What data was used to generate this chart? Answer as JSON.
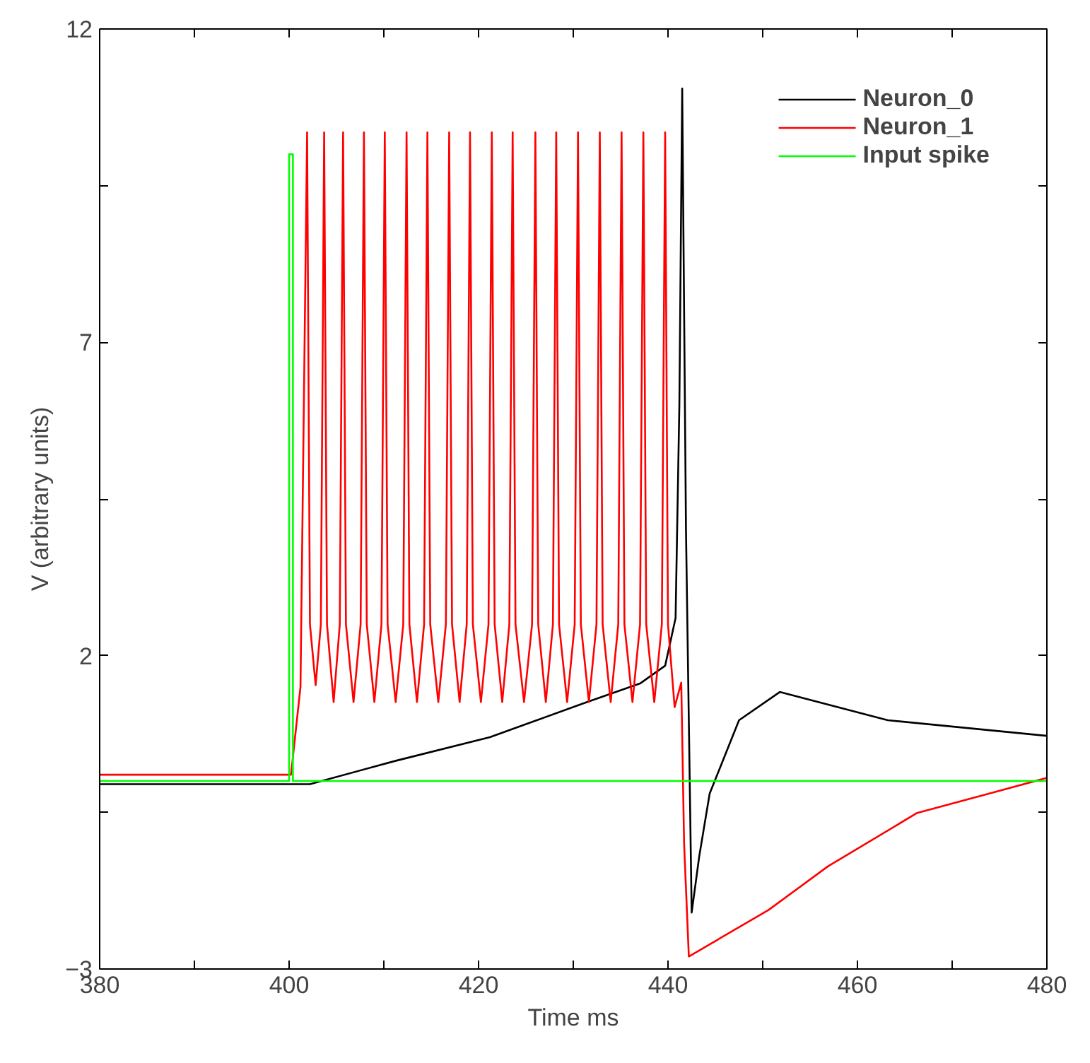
{
  "chart_data": {
    "type": "line",
    "xlabel": "Time ms",
    "ylabel": "V (arbitrary units)",
    "xlim": [
      380,
      480
    ],
    "ylim": [
      -3,
      12
    ],
    "xticks": [
      380,
      {
        "value": 390,
        "label": null
      },
      400,
      {
        "value": 410,
        "label": null
      },
      420,
      {
        "value": 430,
        "label": null
      },
      440,
      {
        "value": 450,
        "label": null
      },
      460,
      {
        "value": 470,
        "label": null
      },
      480
    ],
    "yticks": [
      {
        "value": -3,
        "label": "−3"
      },
      {
        "value": -0.5,
        "label": null
      },
      2,
      {
        "value": 4.5,
        "label": null
      },
      7,
      {
        "value": 9.5,
        "label": null
      },
      12
    ],
    "grid": false,
    "legend": "top right",
    "marker": "none",
    "line_style": "solid",
    "series": [
      {
        "name": "Neuron_0",
        "color": "#000000",
        "x": [
          380,
          402.2,
          411.2,
          421.2,
          431.1,
          437.1,
          439.7,
          440.8,
          441.2,
          441.5,
          441.9,
          442.5,
          443.3,
          444.4,
          447.5,
          451.8,
          463.2,
          480
        ],
        "values": [
          -0.05,
          -0.05,
          0.32,
          0.7,
          1.24,
          1.56,
          1.84,
          2.6,
          6,
          11.05,
          4,
          -2.1,
          -1.2,
          -0.2,
          0.97,
          1.42,
          0.97,
          0.72
        ]
      },
      {
        "name": "Neuron_1",
        "color": "#ff0000",
        "x": [
          380,
          400.2,
          401.2,
          401.9,
          402.2,
          402.8,
          403.35,
          403.7,
          404.0,
          404.7,
          405.35,
          405.7,
          406.0,
          406.8,
          407.55,
          407.9,
          408.2,
          409.0,
          409.75,
          410.1,
          410.4,
          411.25,
          412.05,
          412.4,
          412.7,
          413.5,
          414.25,
          414.6,
          414.9,
          415.75,
          416.55,
          416.9,
          417.2,
          418.0,
          418.75,
          419.1,
          419.4,
          420.25,
          421.05,
          421.4,
          421.7,
          422.5,
          423.25,
          423.6,
          423.9,
          424.8,
          425.65,
          426.0,
          426.3,
          427.1,
          427.85,
          428.2,
          428.5,
          429.35,
          430.15,
          430.5,
          430.8,
          431.65,
          432.45,
          432.8,
          433.1,
          433.95,
          434.75,
          435.1,
          435.4,
          436.25,
          437.05,
          437.4,
          437.7,
          438.55,
          439.35,
          439.7,
          440.0,
          440.7,
          441.4,
          441.7,
          442.2,
          450.6,
          456.9,
          466.3,
          474.4,
          480
        ],
        "values": [
          0.1,
          0.1,
          1.5,
          10.35,
          2.5,
          1.53,
          2.5,
          10.35,
          2.5,
          1.26,
          2.5,
          10.35,
          2.5,
          1.26,
          2.5,
          10.35,
          2.5,
          1.26,
          2.5,
          10.35,
          2.5,
          1.26,
          2.5,
          10.35,
          2.5,
          1.26,
          2.5,
          10.35,
          2.5,
          1.26,
          2.5,
          10.35,
          2.5,
          1.26,
          2.5,
          10.35,
          2.5,
          1.26,
          2.5,
          10.35,
          2.5,
          1.26,
          2.5,
          10.35,
          2.5,
          1.26,
          2.5,
          10.35,
          2.5,
          1.26,
          2.5,
          10.35,
          2.5,
          1.26,
          2.5,
          10.35,
          2.5,
          1.26,
          2.5,
          10.35,
          2.5,
          1.26,
          2.5,
          10.35,
          2.5,
          1.26,
          2.5,
          10.35,
          2.5,
          1.26,
          2.5,
          10.35,
          2.5,
          1.18,
          1.57,
          -1,
          -2.8,
          -2.06,
          -1.36,
          -0.51,
          -0.18,
          0.05
        ]
      },
      {
        "name": "Input spike",
        "color": "#00ff00",
        "x": [
          380,
          400,
          400,
          400.4,
          400.4,
          480
        ],
        "values": [
          0,
          0,
          10,
          10,
          0,
          0
        ]
      }
    ]
  }
}
